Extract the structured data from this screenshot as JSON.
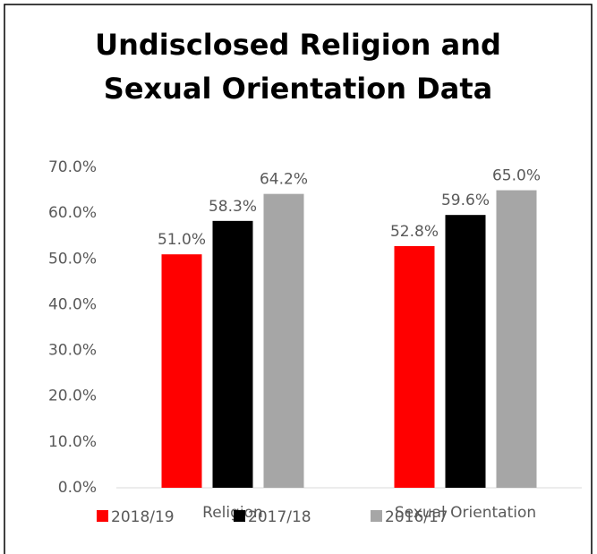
{
  "chart_data": {
    "type": "bar",
    "title": [
      "Undisclosed Religion and",
      "Sexual Orientation Data"
    ],
    "categories": [
      "Religion",
      "Sexual Orientation"
    ],
    "series": [
      {
        "name": "2018/19",
        "color": "#ff0000",
        "values": [
          51.0,
          52.8
        ],
        "value_labels": [
          "51.0%",
          "52.8%"
        ]
      },
      {
        "name": "2017/18",
        "color": "#000000",
        "values": [
          58.3,
          59.6
        ],
        "value_labels": [
          "58.3%",
          "59.6%"
        ]
      },
      {
        "name": "2016/17",
        "color": "#a6a6a6",
        "values": [
          64.2,
          65.0
        ],
        "value_labels": [
          "64.2%",
          "65.0%"
        ]
      }
    ],
    "ylim": [
      0,
      70
    ],
    "yticks": [
      {
        "value": 0,
        "label": "0.0%"
      },
      {
        "value": 10,
        "label": "10.0%"
      },
      {
        "value": 20,
        "label": "20.0%"
      },
      {
        "value": 30,
        "label": "30.0%"
      },
      {
        "value": 40,
        "label": "40.0%"
      },
      {
        "value": 50,
        "label": "50.0%"
      },
      {
        "value": 60,
        "label": "60.0%"
      },
      {
        "value": 70,
        "label": "70.0%"
      }
    ],
    "grid": false,
    "legend": "bottom"
  }
}
